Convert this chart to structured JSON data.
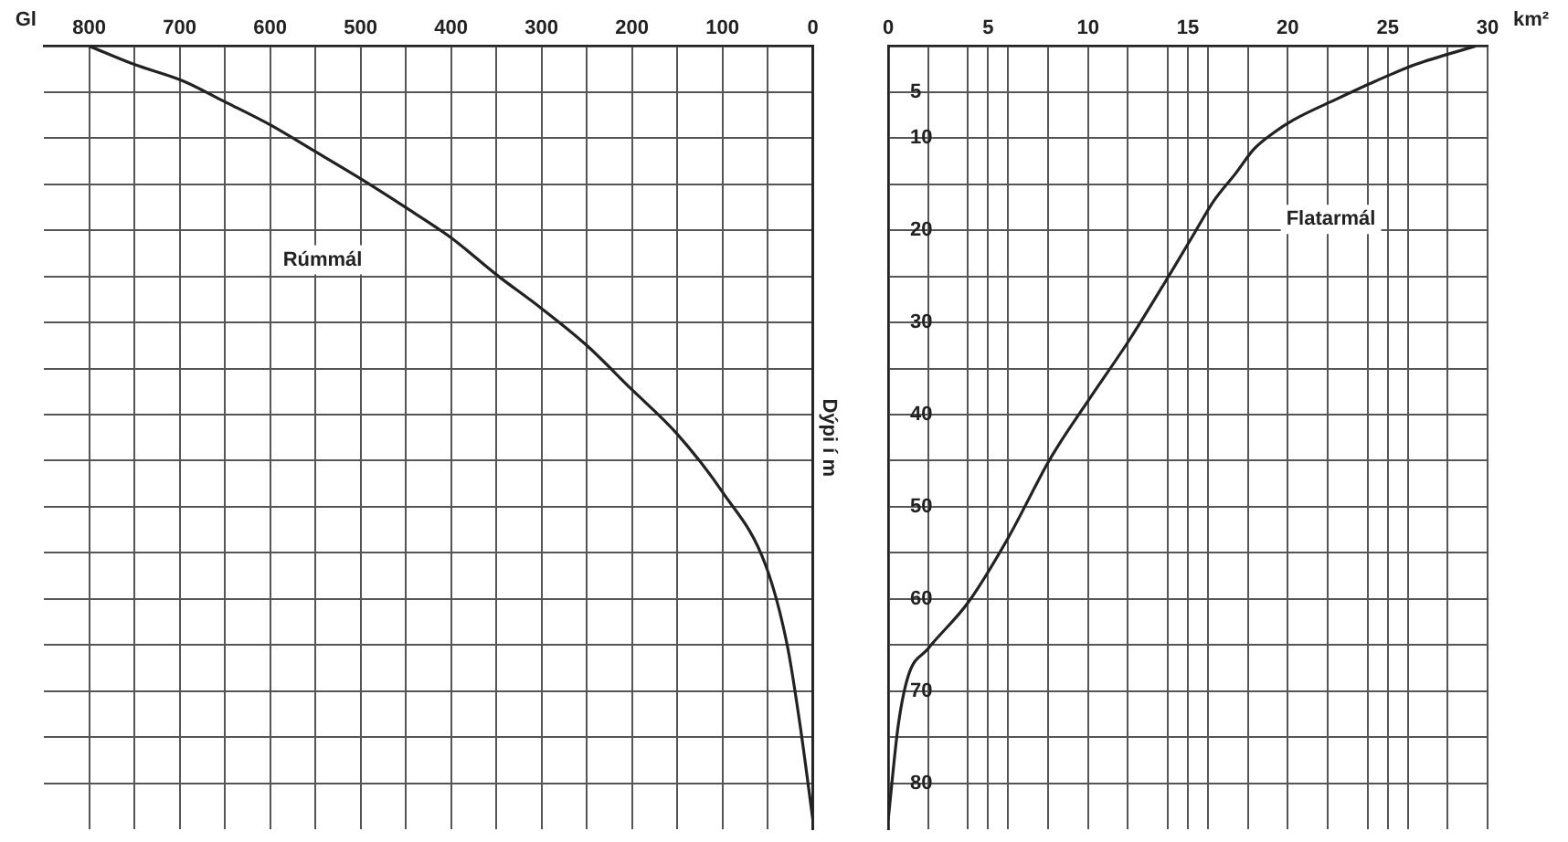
{
  "chart_data": [
    {
      "type": "line",
      "xlabel": "Gl",
      "ylabel": "Dýpi í m",
      "xlim": [
        850,
        0
      ],
      "ylim": [
        85,
        0
      ],
      "xticks": [
        800,
        {
          "value": 750,
          "label": null
        },
        700,
        {
          "value": 650,
          "label": null
        },
        600,
        {
          "value": 550,
          "label": null
        },
        500,
        {
          "value": 450,
          "label": null
        },
        400,
        {
          "value": 350,
          "label": null
        },
        300,
        {
          "value": 250,
          "label": null
        },
        200,
        {
          "value": 150,
          "label": null
        },
        100,
        {
          "value": 50,
          "label": null
        },
        0
      ],
      "yticks": [
        5,
        10,
        {
          "value": 15,
          "label": null
        },
        20,
        {
          "value": 25,
          "label": null
        },
        30,
        {
          "value": 35,
          "label": null
        },
        40,
        {
          "value": 45,
          "label": null
        },
        50,
        {
          "value": 55,
          "label": null
        },
        60,
        {
          "value": 65,
          "label": null
        },
        70,
        {
          "value": 75,
          "label": null
        },
        80
      ],
      "tick_labels": "x",
      "grid": true,
      "legend": false,
      "marker": "none",
      "line_style": "solid",
      "series": [
        {
          "name": "Rúmmál",
          "color": "#222222",
          "x": [
            800,
            750,
            696,
            651,
            599,
            551,
            500,
            452,
            400,
            350,
            301,
            251,
            201,
            151,
            100,
            52,
            28,
            14,
            0
          ],
          "values": [
            0,
            2,
            3.8,
            6,
            8.6,
            11.4,
            14.4,
            17.4,
            20.8,
            24.8,
            28.4,
            32.4,
            37.2,
            42,
            48.4,
            56.4,
            65.2,
            73.8,
            84
          ]
        }
      ]
    },
    {
      "type": "line",
      "xlabel": "km²",
      "xlim": [
        0,
        30
      ],
      "ylim": [
        85,
        0
      ],
      "xticks": [
        0,
        {
          "value": 2,
          "label": null
        },
        {
          "value": 4,
          "label": null
        },
        5,
        {
          "value": 6,
          "label": null
        },
        {
          "value": 8,
          "label": null
        },
        10,
        {
          "value": 12,
          "label": null
        },
        {
          "value": 14,
          "label": null
        },
        15,
        {
          "value": 16,
          "label": null
        },
        {
          "value": 18,
          "label": null
        },
        20,
        {
          "value": 22,
          "label": null
        },
        {
          "value": 24,
          "label": null
        },
        25,
        {
          "value": 26,
          "label": null
        },
        {
          "value": 28,
          "label": null
        },
        30
      ],
      "yticks": [
        5,
        10,
        {
          "value": 15,
          "label": null
        },
        20,
        {
          "value": 25,
          "label": null
        },
        30,
        {
          "value": 35,
          "label": null
        },
        40,
        {
          "value": 45,
          "label": null
        },
        50,
        {
          "value": 55,
          "label": null
        },
        60,
        {
          "value": 65,
          "label": null
        },
        70,
        {
          "value": 75,
          "label": null
        },
        80
      ],
      "grid": true,
      "legend": false,
      "marker": "none",
      "line_style": "solid",
      "series": [
        {
          "name": "Flatarmál",
          "color": "#222222",
          "x": [
            29.4,
            26.4,
            24.4,
            22.4,
            20.3,
            19.3,
            18.3,
            17.4,
            16.3,
            15.3,
            14.2,
            12.1,
            10.1,
            8.5,
            8,
            6,
            4,
            2,
            1,
            0.5,
            0
          ],
          "values": [
            0,
            2,
            3.8,
            5.8,
            8,
            9.4,
            11.2,
            13.8,
            16.8,
            20.4,
            24.4,
            31.8,
            38.2,
            43.4,
            45.2,
            53.4,
            60.4,
            65.4,
            68.4,
            73.8,
            84
          ]
        }
      ]
    }
  ]
}
